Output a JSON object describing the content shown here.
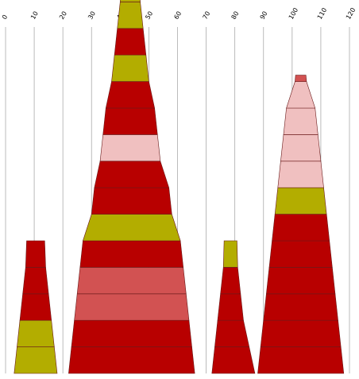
{
  "chart_data": {
    "type": "bar",
    "x_axis": {
      "min": 0,
      "max": 120,
      "ticks": [
        0,
        10,
        20,
        30,
        40,
        50,
        60,
        70,
        80,
        90,
        100,
        110,
        120
      ],
      "position": "top",
      "grid": true
    },
    "colors": {
      "red": "#b80000",
      "olive": "#b3ad00",
      "rose": "#d25252",
      "pink": "#f0c0c0"
    },
    "stacks": [
      {
        "segments": [
          {
            "left": 3,
            "right": 18,
            "color": "olive"
          },
          {
            "left": 4,
            "right": 17,
            "color": "olive"
          },
          {
            "left": 5,
            "right": 16,
            "color": "red"
          },
          {
            "left": 6,
            "right": 15,
            "color": "red"
          },
          {
            "left": 7,
            "right": 14,
            "color": "red"
          }
        ]
      },
      {
        "segments": [
          {
            "left": 22,
            "right": 66,
            "color": "red"
          },
          {
            "left": 23,
            "right": 65,
            "color": "red"
          },
          {
            "left": 24,
            "right": 64,
            "color": "rose"
          },
          {
            "left": 25,
            "right": 63,
            "color": "rose"
          },
          {
            "left": 26,
            "right": 62,
            "color": "red"
          },
          {
            "left": 27,
            "right": 61,
            "color": "olive"
          },
          {
            "left": 30,
            "right": 58,
            "color": "red"
          },
          {
            "left": 31,
            "right": 57,
            "color": "red"
          },
          {
            "left": 33,
            "right": 54,
            "color": "pink"
          },
          {
            "left": 34,
            "right": 53,
            "color": "red"
          },
          {
            "left": 35,
            "right": 52,
            "color": "red"
          },
          {
            "left": 37,
            "right": 50,
            "color": "olive"
          },
          {
            "left": 38,
            "right": 49,
            "color": "red"
          },
          {
            "left": 39,
            "right": 48,
            "color": "olive"
          },
          {
            "left": 40,
            "right": 47,
            "color": "olive"
          }
        ]
      },
      {
        "segments": [
          {
            "left": 72,
            "right": 87,
            "color": "red"
          },
          {
            "left": 73,
            "right": 85,
            "color": "red"
          },
          {
            "left": 74,
            "right": 83,
            "color": "red"
          },
          {
            "left": 75,
            "right": 82,
            "color": "red"
          },
          {
            "left": 76,
            "right": 81,
            "color": "olive"
          }
        ]
      },
      {
        "segments": [
          {
            "left": 88,
            "right": 118,
            "color": "red"
          },
          {
            "left": 89,
            "right": 117,
            "color": "red"
          },
          {
            "left": 90,
            "right": 116,
            "color": "red"
          },
          {
            "left": 91,
            "right": 115,
            "color": "red"
          },
          {
            "left": 92,
            "right": 114,
            "color": "red"
          },
          {
            "left": 93,
            "right": 113,
            "color": "red"
          },
          {
            "left": 94,
            "right": 112,
            "color": "olive"
          },
          {
            "left": 95,
            "right": 111,
            "color": "pink"
          },
          {
            "left": 96,
            "right": 110,
            "color": "pink"
          },
          {
            "left": 97,
            "right": 109,
            "color": "pink"
          },
          {
            "left": 98,
            "right": 108,
            "color": "pink"
          },
          {
            "left": 101,
            "right": 105,
            "color": "rose"
          }
        ]
      }
    ]
  }
}
